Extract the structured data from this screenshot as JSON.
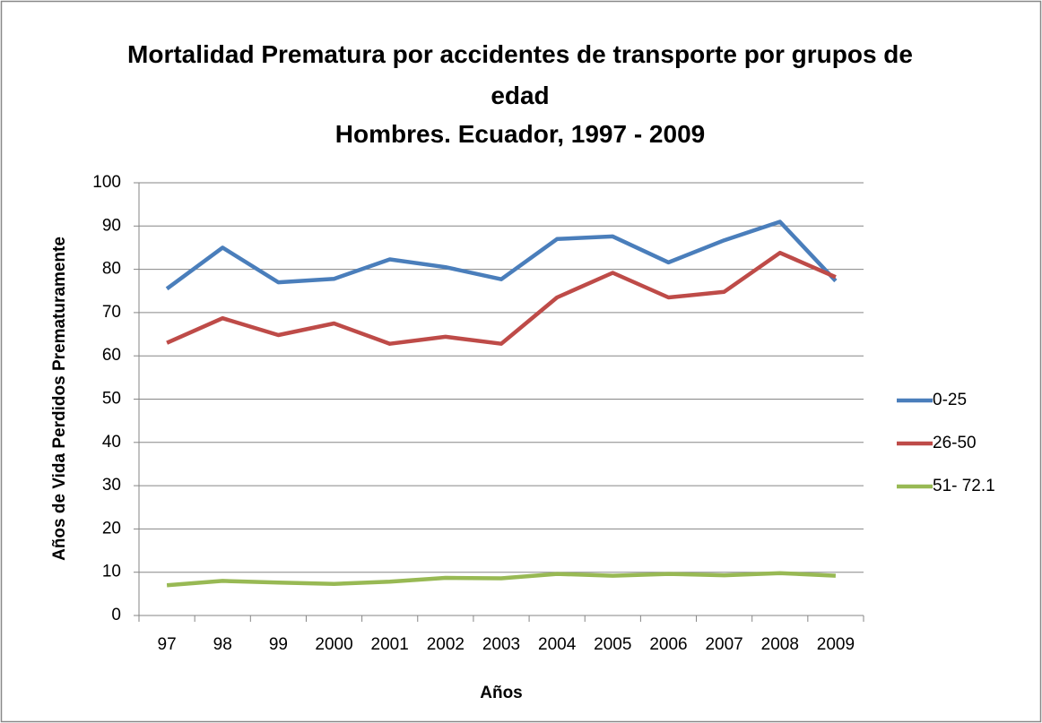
{
  "chart_data": {
    "type": "line",
    "title": "Mortalidad Prematura por accidentes de transporte por grupos de edad",
    "subtitle": "Hombres. Ecuador, 1997 - 2009",
    "x_label": "Años",
    "y_label": "Años de Vida Perdidos Prematuramente",
    "categories": [
      "97",
      "98",
      "99",
      "2000",
      "2001",
      "2002",
      "2003",
      "2004",
      "2005",
      "2006",
      "2007",
      "2008",
      "2009"
    ],
    "series": [
      {
        "name": "0-25",
        "color": "#4a7ebb",
        "values": [
          75.5,
          85,
          77,
          77.8,
          82.3,
          80.5,
          77.7,
          87,
          87.6,
          81.6,
          86.7,
          91,
          77.3
        ]
      },
      {
        "name": "26-50",
        "color": "#be4b48",
        "values": [
          63,
          68.7,
          64.8,
          67.5,
          62.8,
          64.4,
          62.8,
          73.5,
          79.2,
          73.5,
          74.8,
          83.8,
          78.2
        ]
      },
      {
        "name": "51- 72.1",
        "color": "#98b954",
        "values": [
          7,
          8,
          7.6,
          7.3,
          7.8,
          8.7,
          8.6,
          9.6,
          9.2,
          9.6,
          9.3,
          9.8,
          9.2
        ]
      }
    ],
    "ylim": [
      0,
      100
    ],
    "yticks": [
      0,
      10,
      20,
      30,
      40,
      50,
      60,
      70,
      80,
      90,
      100
    ],
    "grid": true,
    "legend": "right"
  }
}
